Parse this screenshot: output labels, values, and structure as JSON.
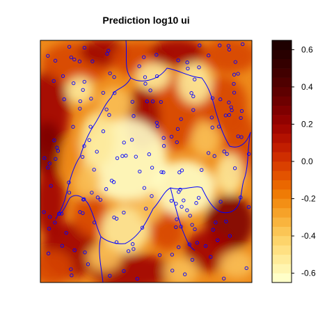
{
  "chart_data": {
    "type": "heatmap",
    "title": "Prediction log10 ui",
    "xlabel": "",
    "ylabel": "",
    "colorbar": {
      "range": [
        -0.65,
        0.65
      ],
      "step": 0.05,
      "tick_values": [
        0.6,
        0.4,
        0.2,
        0.0,
        -0.2,
        -0.4,
        -0.6
      ],
      "tick_labels": [
        "0.6",
        "0.4",
        "0.2",
        "0.0",
        "-0.2",
        "-0.4",
        "-0.6"
      ],
      "colors": [
        "#FFFFC8",
        "#FFF5B0",
        "#FFEB99",
        "#FFE082",
        "#FDD46B",
        "#FBC555",
        "#F9B43E",
        "#F6A229",
        "#F38F15",
        "#EF7B05",
        "#EA6700",
        "#E35300",
        "#DA4000",
        "#CF2E00",
        "#C21E00",
        "#B31100",
        "#A20700",
        "#910200",
        "#7F0000",
        "#6E0000",
        "#5E0000",
        "#4F0000",
        "#410000",
        "#340000",
        "#280000",
        "#1E0000"
      ]
    },
    "sample_points_color": "#0000FF",
    "boundary_color": "#0000FF",
    "field_colors": [
      "#FFFFC8",
      "#FDE99A",
      "#F8BE55",
      "#EE8A1A",
      "#D74500",
      "#A00600",
      "#7E0000"
    ]
  }
}
